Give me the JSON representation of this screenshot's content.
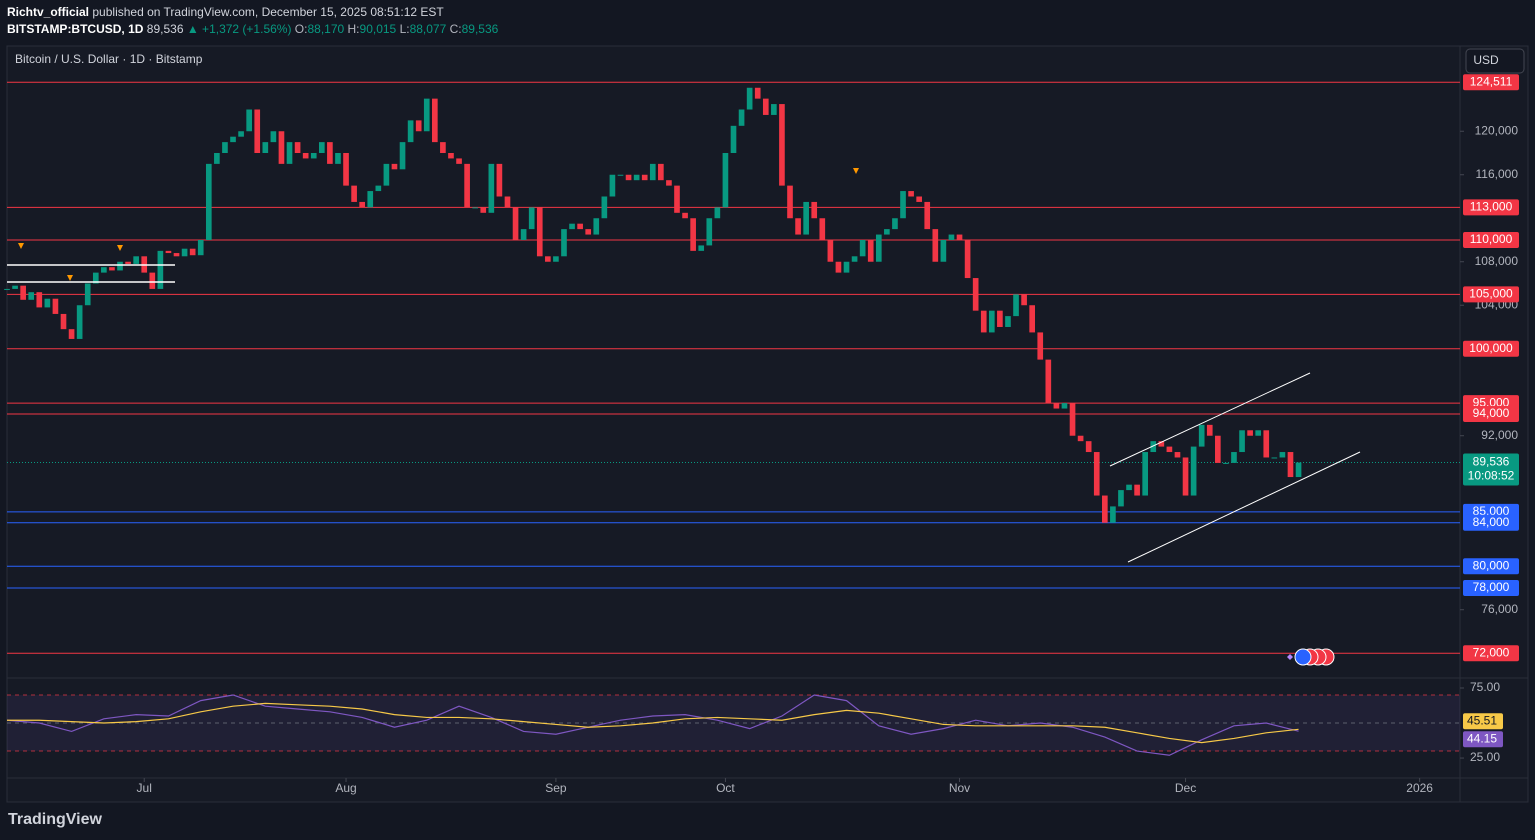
{
  "header": {
    "author": "Richtv_official",
    "published": "published on TradingView.com, December 15, 2025 08:51:12 EST",
    "symbol": "BITSTAMP:BTCUSD, 1D",
    "last": "89,536",
    "change": "▲ +1,372 (+1.56%)",
    "ohlc": [
      {
        "label": "O:",
        "value": "88,170"
      },
      {
        "label": "H:",
        "value": "90,015"
      },
      {
        "label": "L:",
        "value": "88,077"
      },
      {
        "label": "C:",
        "value": "89,536"
      }
    ]
  },
  "chart_data": [
    {
      "type": "candlestick",
      "title": "Bitcoin / U.S. Dollar · 1D · Bitstamp",
      "currency": "USD",
      "close": [
        105500,
        105800,
        104500,
        105200,
        103800,
        104600,
        103200,
        101800,
        100900,
        104000,
        106000,
        107000,
        107500,
        107200,
        108000,
        107800,
        108500,
        107000,
        105500,
        109000,
        108800,
        108500,
        109200,
        108600,
        110000,
        117000,
        118000,
        119000,
        119500,
        120000,
        122000,
        118000,
        119000,
        120000,
        117000,
        119000,
        118000,
        117500,
        118000,
        119000,
        117000,
        118000,
        115000,
        113500,
        113000,
        114500,
        115000,
        117000,
        116500,
        119000,
        121000,
        120000,
        123000,
        119000,
        118000,
        117500,
        117000,
        113000,
        113000,
        112500,
        117000,
        114000,
        113000,
        110000,
        111000,
        113000,
        108500,
        108000,
        108500,
        111000,
        111500,
        111000,
        110500,
        112000,
        114000,
        116000,
        116000,
        115500,
        116000,
        115500,
        117000,
        115500,
        115000,
        112500,
        112000,
        109000,
        109500,
        112000,
        113000,
        118000,
        120500,
        122000,
        124000,
        123000,
        121500,
        122500,
        115000,
        112000,
        110500,
        113500,
        112000,
        110000,
        108000,
        107000,
        108000,
        108500,
        110000,
        108000,
        110500,
        111000,
        112000,
        114500,
        114000,
        113500,
        111000,
        108000,
        110000,
        110500,
        110000,
        106500,
        103500,
        101500,
        103500,
        102000,
        103000,
        105000,
        104000,
        101500,
        99000,
        95000,
        94500,
        95000,
        92000,
        91500,
        90500,
        86500,
        84000,
        85500,
        87000,
        87500,
        86500,
        90500,
        91500,
        91000,
        90500,
        90000,
        86500,
        91000,
        93000,
        92000,
        89500,
        89500,
        90500,
        92500,
        92000,
        92500,
        90000,
        90000,
        90500,
        88200,
        89536
      ],
      "up_color": "#089981",
      "down_color": "#f23645",
      "xlim": [
        0,
        180
      ],
      "xticks": [
        {
          "value": 17,
          "label": "Jul"
        },
        {
          "value": 42,
          "label": "Aug"
        },
        {
          "value": 68,
          "label": "Sep"
        },
        {
          "value": 89,
          "label": "Oct"
        },
        {
          "value": 118,
          "label": "Nov"
        },
        {
          "value": 146,
          "label": "Dec"
        },
        {
          "value": 175,
          "label": "2026"
        }
      ],
      "ylim": [
        69720,
        127840
      ],
      "yticks": [
        {
          "value": 120000,
          "label": "120,000"
        },
        {
          "value": 116000,
          "label": "116,000"
        },
        {
          "value": 108000,
          "label": "108,000"
        },
        {
          "value": 104000,
          "label": "104,000"
        },
        {
          "value": 92000,
          "label": "92,000"
        },
        {
          "value": 76000,
          "label": "76,000"
        }
      ],
      "levels": [
        {
          "value": 124511,
          "label": "124,511",
          "color": "#f23645"
        },
        {
          "value": 113000,
          "label": "113,000",
          "color": "#f23645"
        },
        {
          "value": 110000,
          "label": "110,000",
          "color": "#f23645"
        },
        {
          "value": 105000,
          "label": "105,000",
          "color": "#f23645"
        },
        {
          "value": 100000,
          "label": "100,000",
          "color": "#f23645"
        },
        {
          "value": 95000,
          "label": "95,000",
          "color": "#f23645"
        },
        {
          "value": 94000,
          "label": "94,000",
          "color": "#f23645"
        },
        {
          "value": 85000,
          "label": "85,000",
          "color": "#2962ff"
        },
        {
          "value": 84000,
          "label": "84,000",
          "color": "#2962ff"
        },
        {
          "value": 80000,
          "label": "80,000",
          "color": "#2962ff"
        },
        {
          "value": 78000,
          "label": "78,000",
          "color": "#2962ff"
        },
        {
          "value": 72000,
          "label": "72,000",
          "color": "#f23645"
        }
      ],
      "last_price": {
        "value": 89536,
        "label": "89,536",
        "countdown": "10:08:52",
        "color": "#089981"
      }
    },
    {
      "type": "line",
      "x": [
        0,
        4,
        8,
        12,
        16,
        20,
        24,
        28,
        32,
        36,
        40,
        44,
        48,
        52,
        56,
        60,
        64,
        68,
        72,
        76,
        80,
        84,
        88,
        92,
        96,
        100,
        104,
        108,
        112,
        116,
        120,
        124,
        128,
        132,
        136,
        140,
        144,
        148,
        152,
        156,
        160
      ],
      "xlim": [
        0,
        180
      ],
      "ylim": [
        17.9,
        80.7
      ],
      "yticks": [
        {
          "value": 75,
          "label": "75.00"
        },
        {
          "value": 25,
          "label": "25.00"
        }
      ],
      "bands": [
        70,
        50,
        30
      ],
      "series": [
        {
          "color": "#7e57c2",
          "values": [
            52,
            50,
            44,
            53,
            56,
            55,
            66,
            70,
            62,
            60,
            58,
            54,
            47,
            52,
            62,
            54,
            44,
            42,
            47,
            52,
            55,
            56,
            52,
            46,
            55,
            70,
            66,
            48,
            42,
            46,
            52,
            48,
            50,
            47,
            40,
            30,
            27,
            38,
            48,
            50,
            44.15
          ]
        },
        {
          "color": "#f7c948",
          "values": [
            52,
            52,
            51,
            50,
            51,
            53,
            58,
            62,
            64,
            63,
            62,
            60,
            56,
            54,
            54,
            53,
            51,
            49,
            47,
            48,
            50,
            53,
            54,
            53,
            52,
            56,
            59,
            57,
            53,
            49,
            48,
            48,
            48,
            48,
            47,
            43,
            39,
            36,
            39,
            43,
            45.51
          ]
        }
      ]
    }
  ],
  "footer": "TradingView"
}
